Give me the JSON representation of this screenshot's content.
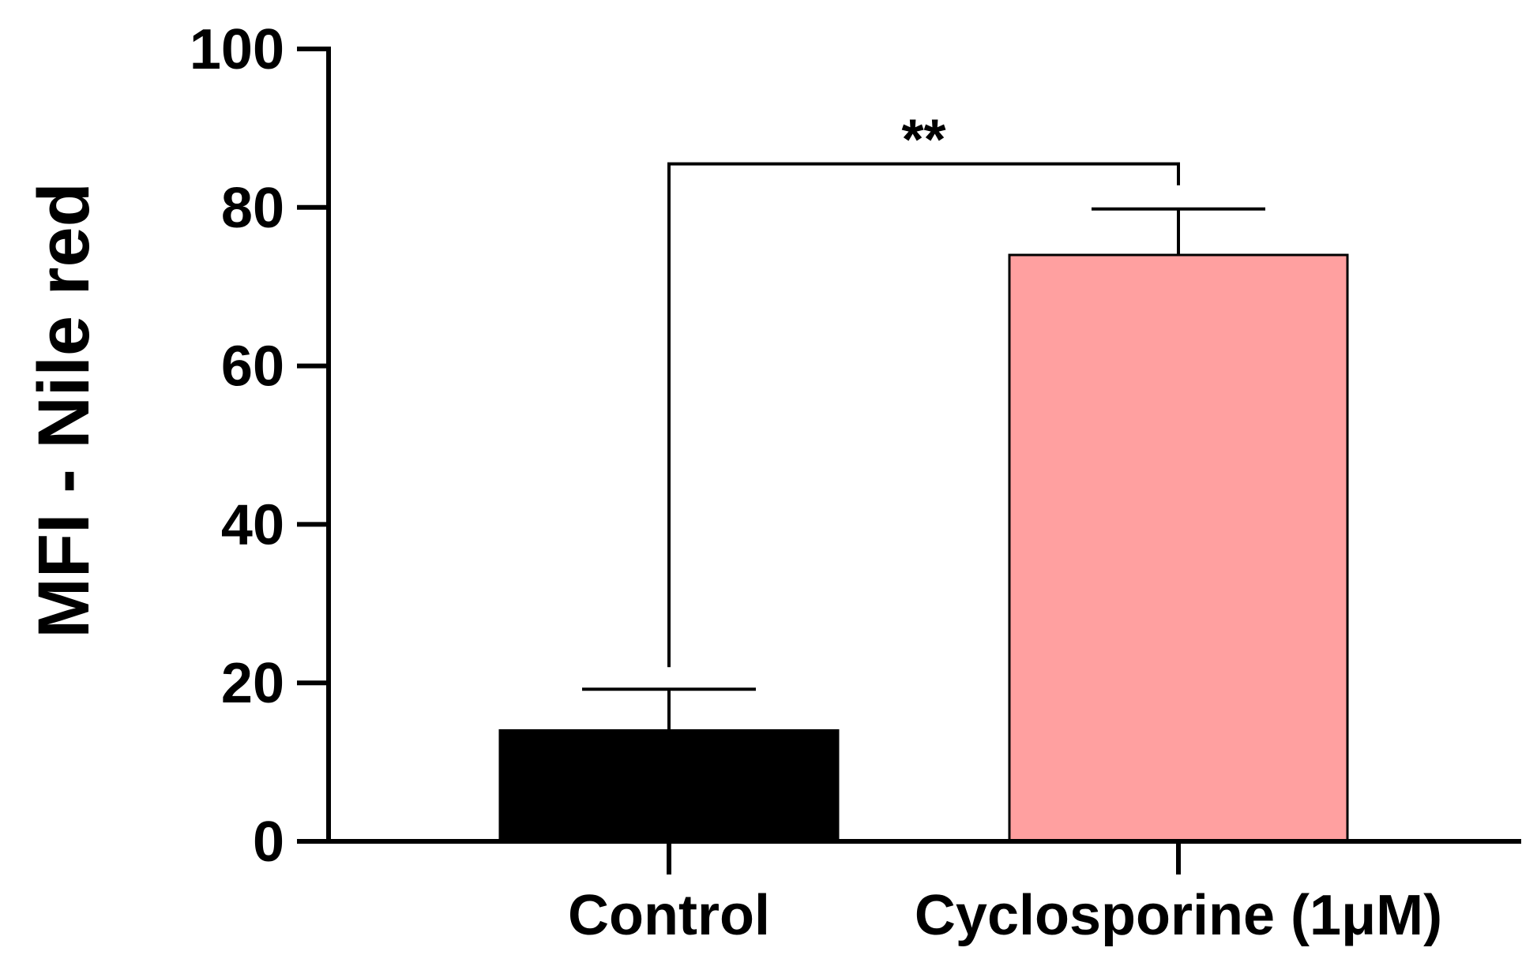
{
  "chart_data": {
    "type": "bar",
    "title": "",
    "xlabel": "",
    "ylabel": "MFI - Nile red",
    "ylim": [
      0,
      100
    ],
    "yticks": [
      0,
      20,
      40,
      60,
      80,
      100
    ],
    "ytick_labels": [
      "0",
      "20",
      "40",
      "60",
      "80",
      "100"
    ],
    "categories": [
      "Control",
      "Cyclosporine (1μM)"
    ],
    "values": [
      14,
      74
    ],
    "errors": [
      5.2,
      5.8
    ],
    "bar_colors": [
      "#000000",
      "#ffa0a0"
    ],
    "annotation": {
      "label": "**",
      "from_category": 0,
      "to_category": 1,
      "bracket_value": 85.5
    }
  }
}
